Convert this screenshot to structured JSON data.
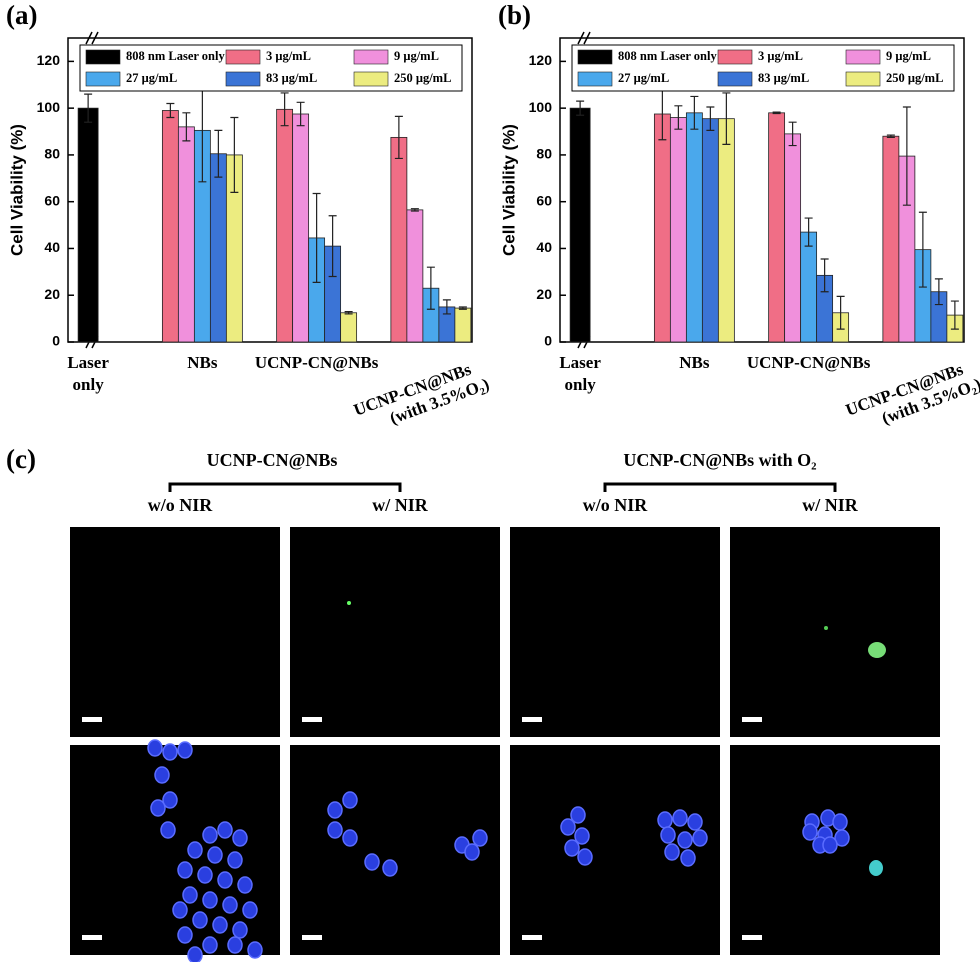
{
  "chart_data": [
    {
      "type": "bar",
      "panel_label": "(a)",
      "ylabel": "Cell Viability (%)",
      "categories": [
        "Laser\nonly",
        "NBs",
        "UCNP-CN@NBs",
        "UCNP-CN@NBs\n(with 3.5%O₂)"
      ],
      "series": [
        {
          "name": "808 nm Laser only",
          "color": "#000000",
          "values": [
            100,
            null,
            null,
            null
          ],
          "errors": [
            6,
            null,
            null,
            null
          ]
        },
        {
          "name": "3 μg/mL",
          "color": "#f06e86",
          "values": [
            null,
            99,
            99.5,
            87.5
          ],
          "errors": [
            null,
            3,
            7,
            9
          ]
        },
        {
          "name": "9 μg/mL",
          "color": "#f090dc",
          "values": [
            null,
            92,
            97.5,
            56.5
          ],
          "errors": [
            null,
            6,
            5,
            0.5
          ]
        },
        {
          "name": "27 μg/mL",
          "color": "#4aa8ec",
          "values": [
            null,
            90.5,
            44.5,
            23
          ],
          "errors": [
            null,
            22,
            19,
            9
          ]
        },
        {
          "name": "83 μg/mL",
          "color": "#3b74d6",
          "values": [
            null,
            80.5,
            41,
            15
          ],
          "errors": [
            null,
            10,
            13,
            3
          ]
        },
        {
          "name": "250 μg/mL",
          "color": "#ecec80",
          "values": [
            null,
            80,
            12.5,
            14.5
          ],
          "errors": [
            null,
            16,
            0.5,
            0.5
          ]
        }
      ],
      "ylim": [
        0,
        130
      ],
      "yticks": [
        0,
        20,
        40,
        60,
        80,
        100,
        120
      ]
    },
    {
      "type": "bar",
      "panel_label": "(b)",
      "ylabel": "Cell Viability (%)",
      "categories": [
        "Laser\nonly",
        "NBs",
        "UCNP-CN@NBs",
        "UCNP-CN@NBs\n(with 3.5%O₂)"
      ],
      "series": [
        {
          "name": "808 nm Laser only",
          "color": "#000000",
          "values": [
            100,
            null,
            null,
            null
          ],
          "errors": [
            3,
            null,
            null,
            null
          ]
        },
        {
          "name": "3 μg/mL",
          "color": "#f06e86",
          "values": [
            null,
            97.5,
            98,
            88
          ],
          "errors": [
            null,
            11,
            0.3,
            0.5
          ]
        },
        {
          "name": "9 μg/mL",
          "color": "#f090dc",
          "values": [
            null,
            96,
            89,
            79.5
          ],
          "errors": [
            null,
            5,
            5,
            21
          ]
        },
        {
          "name": "27 μg/mL",
          "color": "#4aa8ec",
          "values": [
            null,
            98,
            47,
            39.5
          ],
          "errors": [
            null,
            7,
            6,
            16
          ]
        },
        {
          "name": "83 μg/mL",
          "color": "#3b74d6",
          "values": [
            null,
            95.5,
            28.5,
            21.5
          ],
          "errors": [
            null,
            5,
            7,
            5.5
          ]
        },
        {
          "name": "250 μg/mL",
          "color": "#ecec80",
          "values": [
            null,
            95.5,
            12.5,
            11.5
          ],
          "errors": [
            null,
            11,
            7,
            6
          ]
        }
      ],
      "ylim": [
        0,
        130
      ],
      "yticks": [
        0,
        20,
        40,
        60,
        80,
        100,
        120
      ]
    }
  ],
  "panel_c": {
    "label": "(c)",
    "groups": [
      {
        "title": "UCNP-CN@NBs",
        "left": "w/o NIR",
        "right": "w/ NIR"
      },
      {
        "title": "UCNP-CN@NBs with O₂",
        "left": "w/o NIR",
        "right": "w/ NIR"
      }
    ]
  }
}
